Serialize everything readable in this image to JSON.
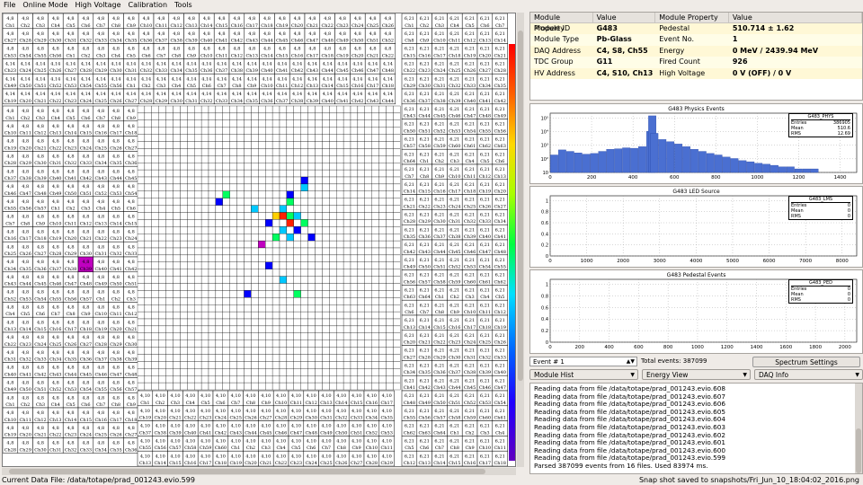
{
  "menubar": {
    "items": [
      "File",
      "Online Mode",
      "High Voltage",
      "Calibration",
      "Tools"
    ]
  },
  "module_properties": {
    "headers": [
      "Module Property",
      "Value",
      "Module Property",
      "Value"
    ],
    "rows": [
      [
        "Module ID",
        "G483",
        "Pedestal",
        "510.714 ± 1.62"
      ],
      [
        "Module Type",
        "Pb-Glass",
        "Event No.",
        "1"
      ],
      [
        "DAQ Address",
        "C4, S8, Ch55",
        "Energy",
        "0 MeV / 2439.94 MeV"
      ],
      [
        "TDC Group",
        "G11",
        "Fired Count",
        "926"
      ],
      [
        "HV Address",
        "C4, S10, Ch13",
        "High Voltage",
        "0 V (OFF) / 0 V"
      ]
    ]
  },
  "histograms": [
    {
      "title": "G483 Physics Events",
      "stats_title": "G483_PHYS",
      "stats": [
        [
          "Entries",
          "386905"
        ],
        [
          "Mean",
          "510.6"
        ],
        [
          "RMS",
          "12.69"
        ]
      ],
      "x_ticks": [
        "0",
        "200",
        "400",
        "600",
        "800",
        "1000",
        "1200",
        "1400"
      ],
      "y_ticks": [
        "10",
        "10²",
        "10³",
        "10⁴",
        "10⁵"
      ]
    },
    {
      "title": "G483 LED Source",
      "stats_title": "G483_LMS",
      "stats": [
        [
          "Entries",
          "0"
        ],
        [
          "Mean",
          "0"
        ],
        [
          "RMS",
          "0"
        ]
      ],
      "x_ticks": [
        "0",
        "1000",
        "2000",
        "3000",
        "4000",
        "5000",
        "6000",
        "7000",
        "8000"
      ],
      "y_ticks": [
        "0",
        "0.2",
        "0.4",
        "0.6",
        "0.8",
        "1"
      ]
    },
    {
      "title": "G483 Pedestal Events",
      "stats_title": "G483_PED",
      "stats": [
        [
          "Entries",
          "0"
        ],
        [
          "Mean",
          "0"
        ],
        [
          "RMS",
          "0"
        ]
      ],
      "x_ticks": [
        "0",
        "200",
        "400",
        "600",
        "800",
        "1000",
        "1200",
        "1400",
        "1600",
        "1800",
        "2000"
      ],
      "y_ticks": [
        "0",
        "0.2",
        "0.4",
        "0.6",
        "0.8",
        "1"
      ]
    }
  ],
  "chart_data": [
    {
      "type": "bar",
      "title": "G483 Physics Events",
      "xlim": [
        0,
        1500
      ],
      "ylim_log": [
        1,
        100000
      ],
      "description_series": "ADC spectrum histogram",
      "x": [
        20,
        60,
        100,
        140,
        180,
        220,
        260,
        300,
        340,
        380,
        420,
        460,
        500,
        510,
        520,
        560,
        600,
        640,
        680,
        720,
        760,
        800,
        840,
        880,
        920,
        960,
        1000,
        1040,
        1080,
        1120,
        1160,
        1200,
        1240,
        1280,
        1320,
        1360,
        1400
      ],
      "y": [
        30,
        80,
        60,
        45,
        35,
        40,
        60,
        90,
        100,
        120,
        110,
        150,
        3000,
        60000,
        2000,
        600,
        400,
        250,
        150,
        90,
        60,
        40,
        30,
        20,
        15,
        10,
        8,
        6,
        5,
        4,
        3,
        3,
        2,
        2,
        2,
        1,
        1
      ]
    },
    {
      "type": "bar",
      "title": "G483 LED Source",
      "xlim": [
        0,
        8500
      ],
      "ylim": [
        0,
        1
      ],
      "values": []
    },
    {
      "type": "bar",
      "title": "G483 Pedestal Events",
      "xlim": [
        0,
        2050
      ],
      "ylim": [
        0,
        1
      ],
      "values": []
    }
  ],
  "controls": {
    "event_input": "Event # 1",
    "total_events": "Total events: 387099",
    "spectrum_settings": "Spectrum Settings",
    "combo1": "Module Hist",
    "combo2": "Energy View",
    "combo3": "DAQ Info"
  },
  "log": {
    "lines": [
      "Reading data from file /data/totape/prad_001243.evio.608",
      "Reading data from file /data/totape/prad_001243.evio.607",
      "Reading data from file /data/totape/prad_001243.evio.606",
      "Reading data from file /data/totape/prad_001243.evio.605",
      "Reading data from file /data/totape/prad_001243.evio.604",
      "Reading data from file /data/totape/prad_001243.evio.603",
      "Reading data from file /data/totape/prad_001243.evio.602",
      "Reading data from file /data/totape/prad_001243.evio.601",
      "Reading data from file /data/totape/prad_001243.evio.600",
      "Reading data from file /data/totape/prad_001243.evio.599",
      "Parsed 387099 events from 16 files. Used 83974 ms."
    ]
  },
  "status": {
    "left": "Current Data File: /data/totape/prad_001243.evio.599",
    "right": "Snap shot saved to snapshots/Fri_Jun_10_18:04:02_2016.png"
  },
  "detector": {
    "outer_label": "4,8",
    "inner_label": "4,10",
    "channel_prefix": "Ch",
    "hit_colors": [
      "#0000ff",
      "#00c8ff",
      "#00ff60",
      "#ffd000",
      "#ff2000",
      "#c000c0"
    ]
  }
}
